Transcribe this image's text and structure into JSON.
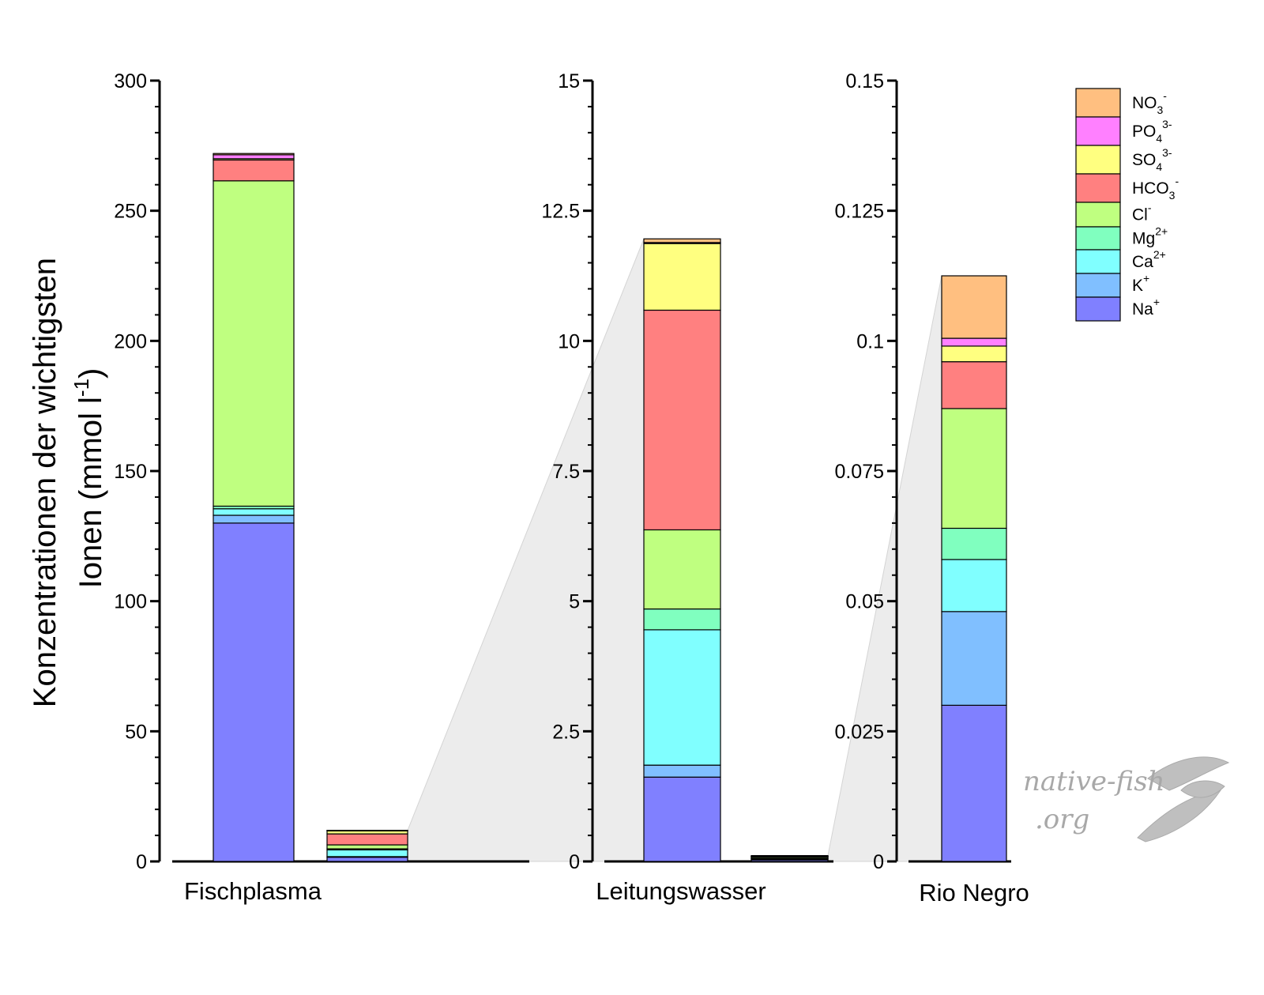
{
  "chart_data": {
    "type": "bar",
    "stacked": true,
    "ylabel_lines": [
      "Konzentrationen der wichtigsten",
      "Ionen (mmol l",
      "-1",
      ")"
    ],
    "ion_order": [
      "Na+",
      "K+",
      "Ca2+",
      "Mg2+",
      "Cl-",
      "HCO3-",
      "SO4 3-",
      "PO4 3-",
      "NO3-"
    ],
    "colors": {
      "Na+": "#8080ff",
      "K+": "#80bfff",
      "Ca2+": "#80ffff",
      "Mg2+": "#80ffbf",
      "Cl-": "#bfff80",
      "HCO3-": "#ff8080",
      "SO4 3-": "#ffff80",
      "PO4 3-": "#ff80ff",
      "NO3-": "#ffbf80"
    },
    "panels": [
      {
        "category": "Fischplasma",
        "ylim": [
          0,
          300
        ],
        "yticks": [
          "0",
          "50",
          "100",
          "150",
          "200",
          "250",
          "300"
        ],
        "bar": [
          {
            "ion": "Na+",
            "value": 130
          },
          {
            "ion": "K+",
            "value": 3
          },
          {
            "ion": "Ca2+",
            "value": 2.5
          },
          {
            "ion": "Mg2+",
            "value": 1
          },
          {
            "ion": "Cl-",
            "value": 125
          },
          {
            "ion": "HCO3-",
            "value": 8
          },
          {
            "ion": "SO4 3-",
            "value": 0.5
          },
          {
            "ion": "PO4 3-",
            "value": 1.5
          },
          {
            "ion": "NO3-",
            "value": 0.5
          }
        ],
        "comparison_bar": [
          {
            "ion": "Na+",
            "value": 1.62
          },
          {
            "ion": "K+",
            "value": 0.23
          },
          {
            "ion": "Ca2+",
            "value": 2.6
          },
          {
            "ion": "Mg2+",
            "value": 0.4
          },
          {
            "ion": "Cl-",
            "value": 1.52
          },
          {
            "ion": "HCO3-",
            "value": 4.22
          },
          {
            "ion": "SO4 3-",
            "value": 1.28
          },
          {
            "ion": "PO4 3-",
            "value": 0.02
          },
          {
            "ion": "NO3-",
            "value": 0.07
          }
        ]
      },
      {
        "category": "Leitungswasser",
        "ylim": [
          0,
          15
        ],
        "yticks": [
          "0",
          "2.5",
          "5",
          "7.5",
          "10",
          "12.5",
          "15"
        ],
        "bar": [
          {
            "ion": "Na+",
            "value": 1.62
          },
          {
            "ion": "K+",
            "value": 0.23
          },
          {
            "ion": "Ca2+",
            "value": 2.6
          },
          {
            "ion": "Mg2+",
            "value": 0.4
          },
          {
            "ion": "Cl-",
            "value": 1.52
          },
          {
            "ion": "HCO3-",
            "value": 4.22
          },
          {
            "ion": "SO4 3-",
            "value": 1.28
          },
          {
            "ion": "PO4 3-",
            "value": 0.02
          },
          {
            "ion": "NO3-",
            "value": 0.07
          }
        ],
        "comparison_bar": [
          {
            "ion": "Na+",
            "value": 0.03
          },
          {
            "ion": "K+",
            "value": 0.018
          },
          {
            "ion": "Ca2+",
            "value": 0.01
          },
          {
            "ion": "Mg2+",
            "value": 0.006
          },
          {
            "ion": "Cl-",
            "value": 0.023
          },
          {
            "ion": "HCO3-",
            "value": 0.009
          },
          {
            "ion": "SO4 3-",
            "value": 0.003
          },
          {
            "ion": "PO4 3-",
            "value": 0.0015
          },
          {
            "ion": "NO3-",
            "value": 0.012
          }
        ]
      },
      {
        "category": "Rio Negro",
        "ylim": [
          0,
          0.15
        ],
        "yticks": [
          "0",
          "0.025",
          "0.05",
          "0.075",
          "0.1",
          "0.125",
          "0.15"
        ],
        "bar": [
          {
            "ion": "Na+",
            "value": 0.03
          },
          {
            "ion": "K+",
            "value": 0.018
          },
          {
            "ion": "Ca2+",
            "value": 0.01
          },
          {
            "ion": "Mg2+",
            "value": 0.006
          },
          {
            "ion": "Cl-",
            "value": 0.023
          },
          {
            "ion": "HCO3-",
            "value": 0.009
          },
          {
            "ion": "SO4 3-",
            "value": 0.003
          },
          {
            "ion": "PO4 3-",
            "value": 0.0015
          },
          {
            "ion": "NO3-",
            "value": 0.012
          }
        ],
        "comparison_bar": []
      }
    ],
    "legend": {
      "placement": "top-right",
      "entries": [
        {
          "ion": "NO3-",
          "base": "NO",
          "sub": "3",
          "sup": "-"
        },
        {
          "ion": "PO4 3-",
          "base": "PO",
          "sub": "4",
          "sup": "3-"
        },
        {
          "ion": "SO4 3-",
          "base": "SO",
          "sub": "4",
          "sup": "3-"
        },
        {
          "ion": "HCO3-",
          "base": "HCO",
          "sub": "3",
          "sup": "-"
        },
        {
          "ion": "Cl-",
          "base": "Cl",
          "sub": "",
          "sup": "-"
        },
        {
          "ion": "Mg2+",
          "base": "Mg",
          "sub": "",
          "sup": "2+"
        },
        {
          "ion": "Ca2+",
          "base": "Ca",
          "sub": "",
          "sup": "2+"
        },
        {
          "ion": "K+",
          "base": "K",
          "sub": "",
          "sup": "+"
        },
        {
          "ion": "Na+",
          "base": "Na",
          "sub": "",
          "sup": "+"
        }
      ]
    }
  },
  "watermark": {
    "line1": "native-fish",
    "line2": ".org"
  }
}
